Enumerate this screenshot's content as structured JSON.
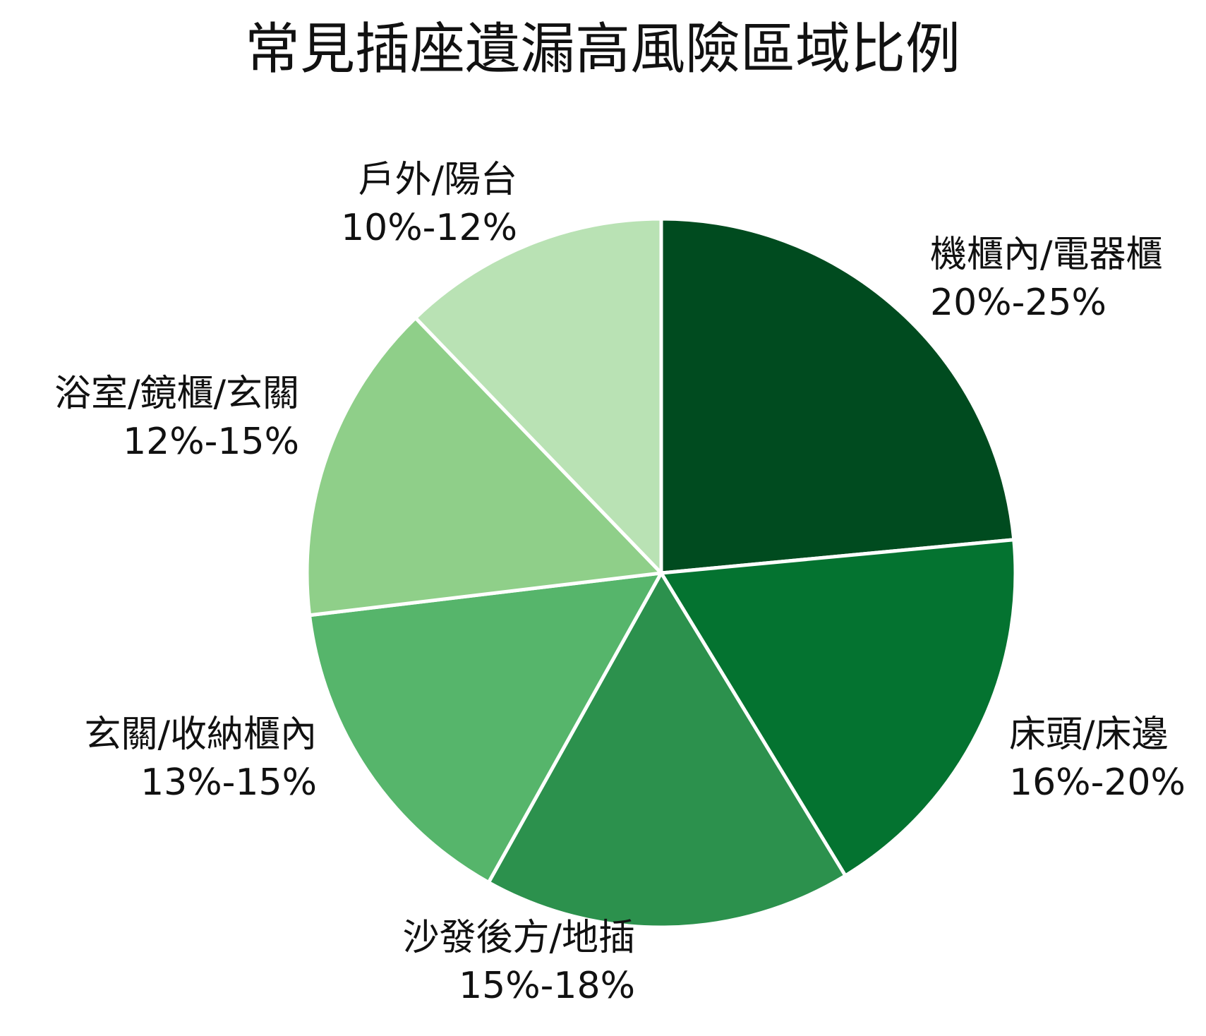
{
  "chart_data": {
    "type": "pie",
    "title": "常見插座遺漏高風險區域比例",
    "start": "top",
    "direction": "clockwise",
    "legend": "none",
    "slices": [
      {
        "label": "機櫃內/電器櫃",
        "range_text": "20%-25%",
        "value": 23.5,
        "color": "#004b1f"
      },
      {
        "label": "床頭/床邊",
        "range_text": "16%-20%",
        "value": 17.8,
        "color": "#047330"
      },
      {
        "label": "沙發後方/地插",
        "range_text": "15%-18%",
        "value": 16.8,
        "color": "#2c914d"
      },
      {
        "label": "玄關/收納櫃內",
        "range_text": "13%-15%",
        "value": 15.0,
        "color": "#56b56b"
      },
      {
        "label": "浴室/鏡櫃/玄關",
        "range_text": "12%-15%",
        "value": 14.7,
        "color": "#8fcf89"
      },
      {
        "label": "戶外/陽台",
        "range_text": "10%-12%",
        "value": 12.2,
        "color": "#b9e2b4"
      }
    ]
  }
}
